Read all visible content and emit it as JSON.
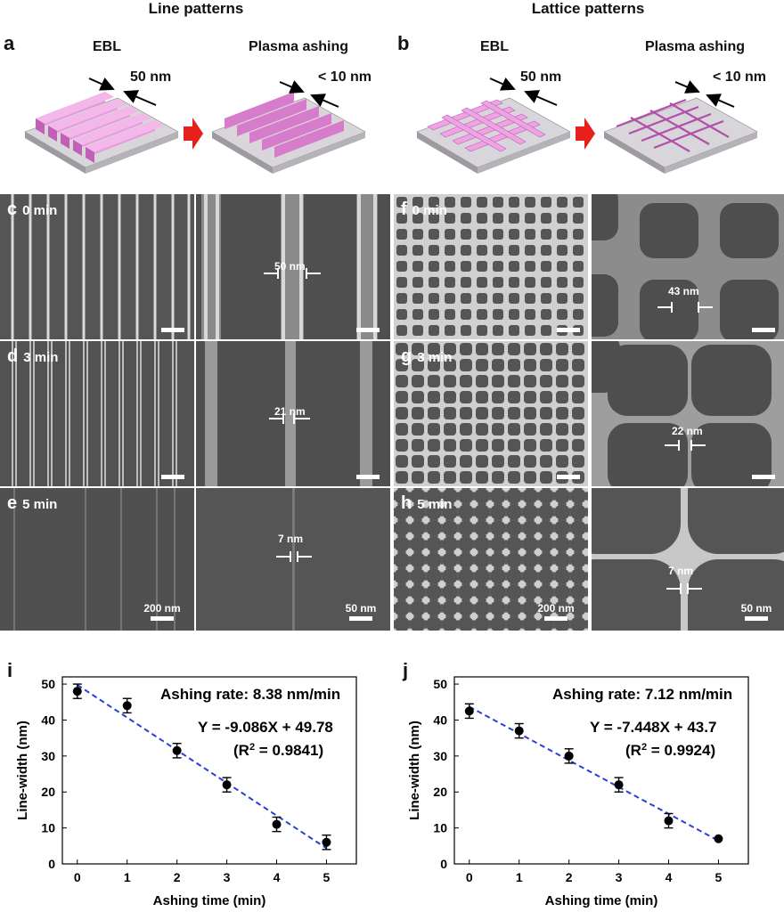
{
  "headers": {
    "left": "Line patterns",
    "right": "Lattice patterns"
  },
  "panel_a": {
    "letter": "a",
    "step1": "EBL",
    "step2": "Plasma ashing",
    "dim1": "50 nm",
    "dim2": "< 10 nm"
  },
  "panel_b": {
    "letter": "b",
    "step1": "EBL",
    "step2": "Plasma ashing",
    "dim1": "50 nm",
    "dim2": "< 10 nm"
  },
  "sem": {
    "c": {
      "letter": "c",
      "time": "0 min",
      "meas": "50 nm"
    },
    "d": {
      "letter": "d",
      "time": "3 min",
      "meas": "21 nm"
    },
    "e": {
      "letter": "e",
      "time": "5 min",
      "meas": "7 nm",
      "scale_low": "200 nm",
      "scale_high": "50 nm"
    },
    "f": {
      "letter": "f",
      "time": "0 min",
      "meas": "43 nm"
    },
    "g": {
      "letter": "g",
      "time": "3 min",
      "meas": "22 nm"
    },
    "h": {
      "letter": "h",
      "time": "5 min",
      "meas": "7 nm",
      "scale_low": "200 nm",
      "scale_high": "50 nm"
    }
  },
  "colors": {
    "pink": "#e07ad0",
    "pink_dark": "#b24fa8",
    "arrow_red": "#e8201c",
    "fit_line": "#2b3fd6",
    "sem_bg": "#4a4a4a"
  },
  "chart_data": [
    {
      "panel": "i",
      "type": "scatter",
      "x": [
        0,
        1,
        2,
        3,
        4,
        5
      ],
      "y": [
        48,
        44,
        31.5,
        22,
        11,
        6
      ],
      "yerr": [
        2,
        2,
        2,
        2,
        2,
        2
      ],
      "fit": {
        "slope": -9.086,
        "intercept": 49.78
      },
      "annotation_rate": "Ashing rate: 8.38 nm/min",
      "annotation_eq": "Y = -9.086X + 49.78",
      "annotation_r2_pre": "(R",
      "annotation_r2_sup": "2",
      "annotation_r2_post": " = 0.9841)",
      "xlabel": "Ashing time (min)",
      "ylabel": "Line-width (nm)",
      "xlim": [
        -0.3,
        5.6
      ],
      "ylim": [
        0,
        52
      ],
      "xticks": [
        0,
        1,
        2,
        3,
        4,
        5
      ],
      "yticks": [
        0,
        10,
        20,
        30,
        40,
        50
      ]
    },
    {
      "panel": "j",
      "type": "scatter",
      "x": [
        0,
        1,
        2,
        3,
        4,
        5
      ],
      "y": [
        42.5,
        37,
        30,
        22,
        12,
        7
      ],
      "yerr": [
        2,
        2,
        2,
        2,
        2,
        0
      ],
      "fit": {
        "slope": -7.448,
        "intercept": 43.7
      },
      "annotation_rate": "Ashing rate: 7.12 nm/min",
      "annotation_eq": "Y = -7.448X + 43.7",
      "annotation_r2_pre": "(R",
      "annotation_r2_sup": "2",
      "annotation_r2_post": " = 0.9924)",
      "xlabel": "Ashing time (min)",
      "ylabel": "Line-width (nm)",
      "xlim": [
        -0.3,
        5.6
      ],
      "ylim": [
        0,
        52
      ],
      "xticks": [
        0,
        1,
        2,
        3,
        4,
        5
      ],
      "yticks": [
        0,
        10,
        20,
        30,
        40,
        50
      ]
    }
  ]
}
